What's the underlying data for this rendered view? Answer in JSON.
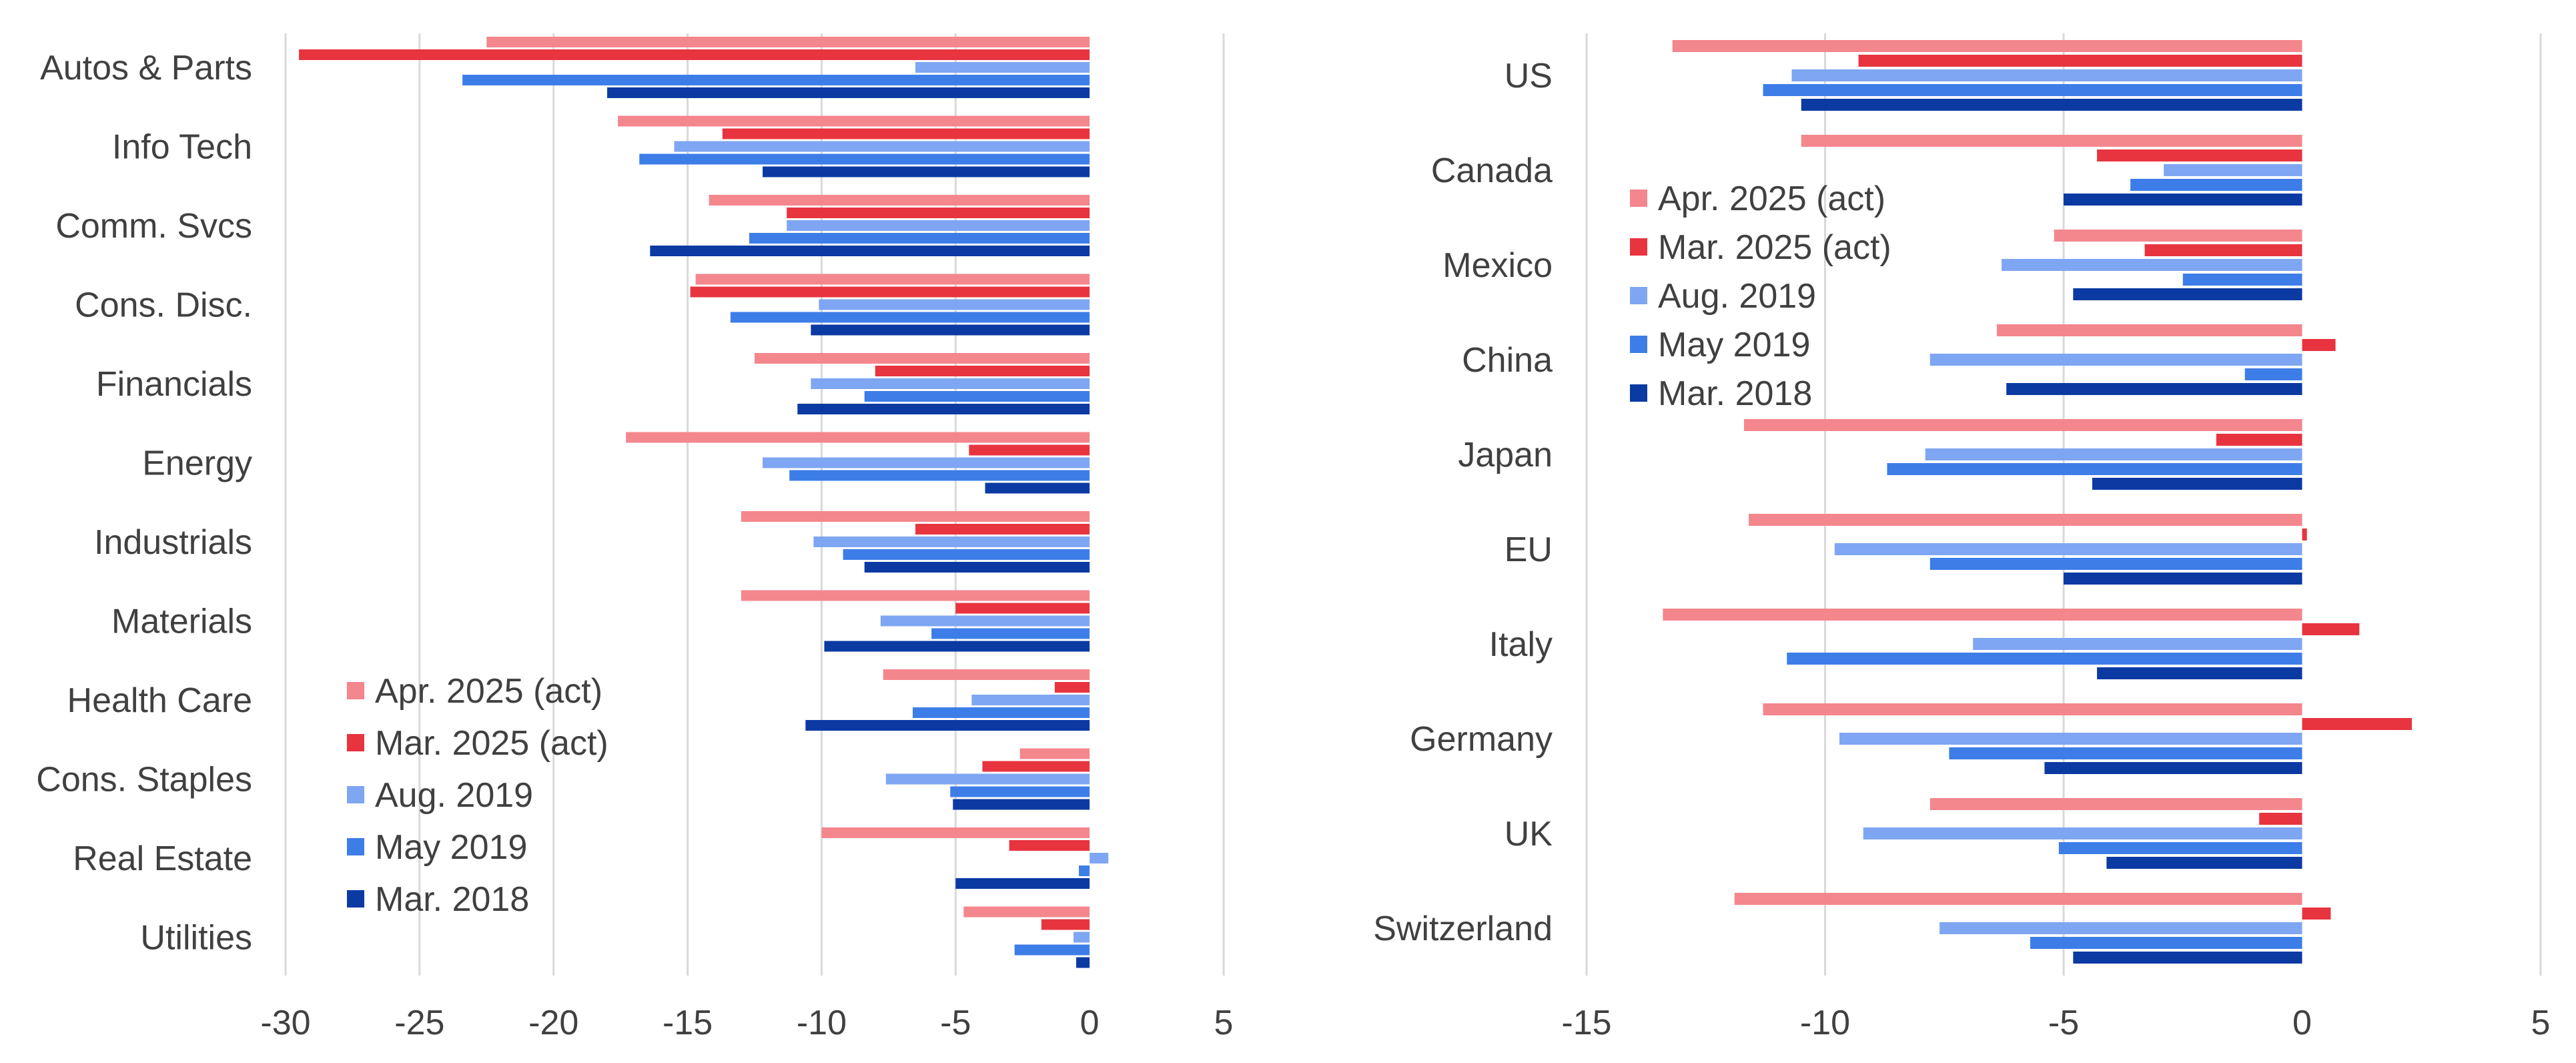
{
  "series_names": [
    "Apr. 2025 (act)",
    "Mar. 2025 (act)",
    "Aug. 2019",
    "May 2019",
    "Mar. 2018"
  ],
  "colors": [
    "#f4868d",
    "#e8343f",
    "#7ea6f2",
    "#3d7de8",
    "#0b3aa3"
  ],
  "gridline_color": "#d9d9d9",
  "chart_data": [
    {
      "type": "bar",
      "orientation": "horizontal",
      "categories": [
        "Autos & Parts",
        "Info Tech",
        "Comm. Svcs",
        "Cons. Disc.",
        "Financials",
        "Energy",
        "Industrials",
        "Materials",
        "Health Care",
        "Cons. Staples",
        "Real Estate",
        "Utilities"
      ],
      "series": [
        {
          "name": "Apr. 2025 (act)",
          "values": [
            -22.5,
            -17.6,
            -14.2,
            -14.7,
            -12.5,
            -17.3,
            -13.0,
            -13.0,
            -7.7,
            -2.6,
            -10.0,
            -4.7
          ]
        },
        {
          "name": "Mar. 2025 (act)",
          "values": [
            -29.5,
            -13.7,
            -11.3,
            -14.9,
            -8.0,
            -4.5,
            -6.5,
            -5.0,
            -1.3,
            -4.0,
            -3.0,
            -1.8
          ]
        },
        {
          "name": "Aug. 2019",
          "values": [
            -6.5,
            -15.5,
            -11.3,
            -10.1,
            -10.4,
            -12.2,
            -10.3,
            -7.8,
            -4.4,
            -7.6,
            0.7,
            -0.6
          ]
        },
        {
          "name": "May 2019",
          "values": [
            -23.4,
            -16.8,
            -12.7,
            -13.4,
            -8.4,
            -11.2,
            -9.2,
            -5.9,
            -6.6,
            -5.2,
            -0.4,
            -2.8
          ]
        },
        {
          "name": "Mar. 2018",
          "values": [
            -18.0,
            -12.2,
            -16.4,
            -10.4,
            -10.9,
            -3.9,
            -8.4,
            -9.9,
            -10.6,
            -5.1,
            -5.0,
            -0.5
          ]
        }
      ],
      "xlim": [
        -30,
        5
      ],
      "xticks": [
        "-30",
        "-25",
        "-20",
        "-15",
        "-10",
        "-5",
        "0",
        "5"
      ],
      "grid": true,
      "legend_position": "bottom-left"
    },
    {
      "type": "bar",
      "orientation": "horizontal",
      "categories": [
        "US",
        "Canada",
        "Mexico",
        "China",
        "Japan",
        "EU",
        "Italy",
        "Germany",
        "UK",
        "Switzerland"
      ],
      "series": [
        {
          "name": "Apr. 2025 (act)",
          "values": [
            -13.2,
            -10.5,
            -5.2,
            -6.4,
            -11.7,
            -11.6,
            -13.4,
            -11.3,
            -7.8,
            -11.9
          ]
        },
        {
          "name": "Mar. 2025 (act)",
          "values": [
            -9.3,
            -4.3,
            -3.3,
            0.7,
            -1.8,
            0.1,
            1.2,
            2.3,
            -0.9,
            0.6
          ]
        },
        {
          "name": "Aug. 2019",
          "values": [
            -10.7,
            -2.9,
            -6.3,
            -7.8,
            -7.9,
            -9.8,
            -6.9,
            -9.7,
            -9.2,
            -7.6
          ]
        },
        {
          "name": "May 2019",
          "values": [
            -11.3,
            -3.6,
            -2.5,
            -1.2,
            -8.7,
            -7.8,
            -10.8,
            -7.4,
            -5.1,
            -5.7
          ]
        },
        {
          "name": "Mar. 2018",
          "values": [
            -10.5,
            -5.0,
            -4.8,
            -6.2,
            -4.4,
            -5.0,
            -4.3,
            -5.4,
            -4.1,
            -4.8
          ]
        }
      ],
      "xlim": [
        -15,
        5
      ],
      "xticks": [
        "-15",
        "-10",
        "-5",
        "0",
        "5"
      ],
      "grid": true,
      "legend_position": "top-left"
    }
  ]
}
